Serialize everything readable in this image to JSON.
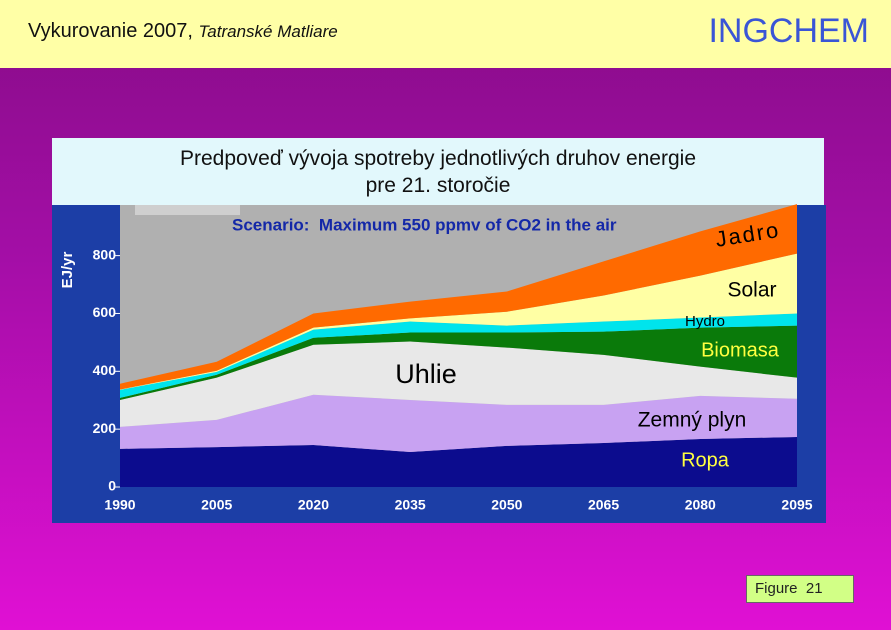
{
  "header": {
    "title": "Vykurovanie 2007,",
    "location": "Tatranské Matliare",
    "brand": "INGCHEM"
  },
  "footer": {
    "figure": "Figure  21"
  },
  "chart_data": {
    "type": "stacked-area",
    "title": [
      "Predpoveď vývoja spotreby jednotlivých druhov energie",
      "pre 21. storočie"
    ],
    "subtitle": "Scenario:  Maximum 550 ppmv of CO2 in the air",
    "y_label": "EJ/yr",
    "categories": [
      "1990",
      "2005",
      "2020",
      "2035",
      "2050",
      "2065",
      "2080",
      "2095"
    ],
    "ylim": [
      0,
      975
    ],
    "yticks": [
      0,
      200,
      400,
      600,
      800
    ],
    "grid": false,
    "series": [
      {
        "name": "Ropa",
        "color": "#0c0c8e",
        "values": [
          132,
          138,
          145,
          121,
          142,
          152,
          166,
          173
        ]
      },
      {
        "name": "Zemný plyn",
        "color": "#c8a2f2",
        "values": [
          76,
          94,
          174,
          180,
          142,
          132,
          149,
          132
        ]
      },
      {
        "name": "Uhlie",
        "color": "#e8e8e8",
        "values": [
          93,
          146,
          173,
          202,
          198,
          173,
          101,
          73
        ]
      },
      {
        "name": "Biomasa",
        "color": "#0a7a0a",
        "values": [
          7,
          10,
          24,
          31,
          52,
          80,
          135,
          180
        ]
      },
      {
        "name": "Hydro",
        "color": "#00e4ec",
        "values": [
          28,
          10,
          28,
          38,
          24,
          35,
          35,
          42
        ]
      },
      {
        "name": "Solar",
        "color": "#ffffa4",
        "values": [
          1,
          4,
          7,
          11,
          48,
          90,
          145,
          207
        ]
      },
      {
        "name": "Jadro",
        "color": "#ff6a00",
        "values": [
          20,
          31,
          49,
          58,
          70,
          118,
          153,
          171
        ]
      }
    ]
  }
}
